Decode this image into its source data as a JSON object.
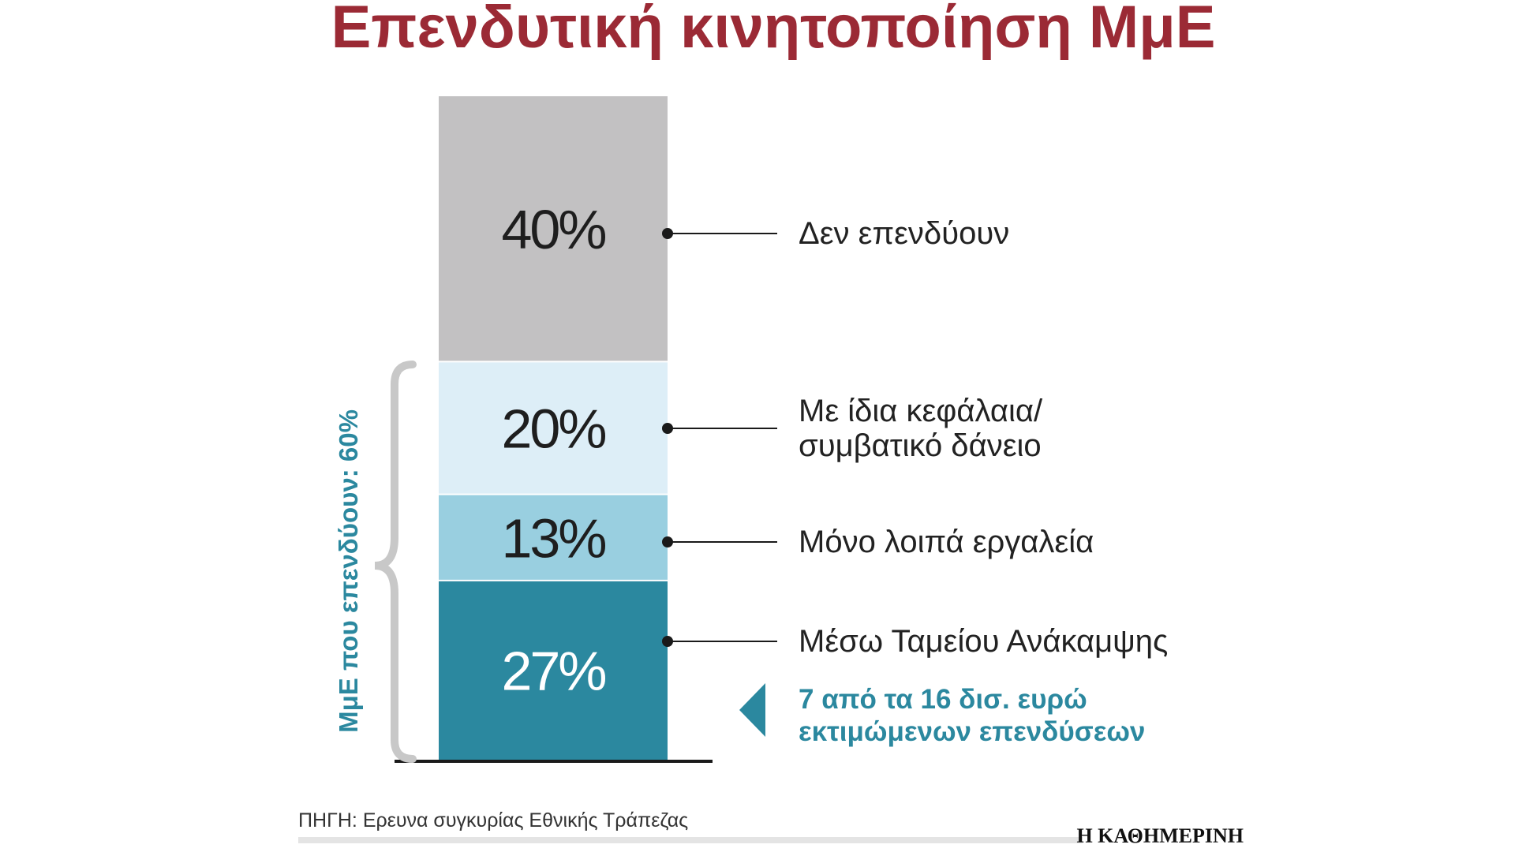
{
  "chart_data": {
    "type": "bar",
    "title": "Επενδυτική κινητοποίηση ΜμΕ",
    "categories": [
      "Μέσω Ταμείου Ανάκαμψης",
      "Μόνο λοιπά εργαλεία",
      "Με ίδια κεφάλαια/ συμβατικό δάνειο",
      "Δεν επενδύουν"
    ],
    "values": [
      27,
      13,
      20,
      40
    ],
    "labels": [
      "27%",
      "13%",
      "20%",
      "40%"
    ],
    "category_lines": [
      [
        "Μέσω Ταμείου Ανάκαμψης"
      ],
      [
        "Μόνο λοιπά εργαλεία"
      ],
      [
        "Με ίδια κεφάλαια/",
        "συμβατικό δάνειο"
      ],
      [
        "Δεν επενδύουν"
      ]
    ],
    "colors": [
      "#2b889f",
      "#99cfe0",
      "#ddeef7",
      "#c2c1c2"
    ],
    "label_colors": [
      "#ffffff",
      "#1e1e1e",
      "#1e1e1e",
      "#1e1e1e"
    ],
    "stacked": true,
    "ylim": [
      0,
      100
    ],
    "grid": false,
    "bracket_label": "ΜμΕ που επενδύουν: 60%",
    "annotation": {
      "lines": [
        "7 από τα 16 δισ. ευρώ",
        "εκτιμώμενων επενδύσεων"
      ],
      "color": "#2b889f"
    }
  },
  "source": "ΠΗΓΗ: Ερευνα συγκυρίας Εθνικής Τράπεζας",
  "brand": "Η ΚΑΘΗΜΕΡΙΝΗ",
  "colors": {
    "title": "#9b2a35",
    "accent": "#2b889f",
    "bracket": "#c8c8c8"
  }
}
